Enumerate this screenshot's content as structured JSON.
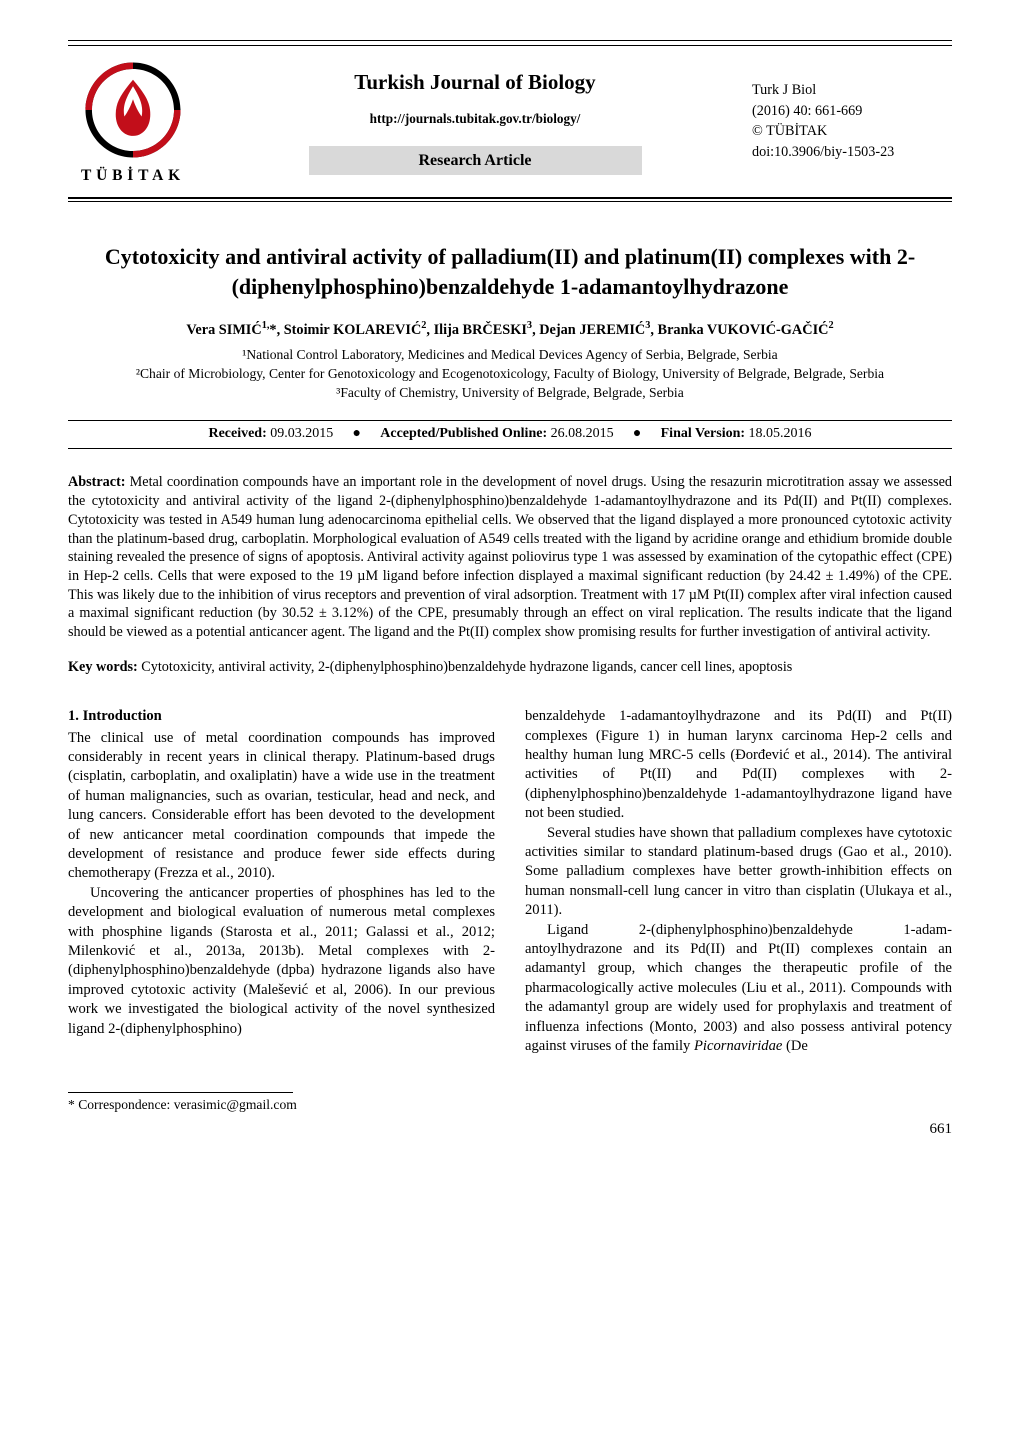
{
  "header": {
    "logo_text": "TÜBİTAK",
    "journal_title": "Turkish Journal of Biology",
    "journal_url": "http://journals.tubitak.gov.tr/biology/",
    "article_type": "Research Article",
    "short_title": "Turk J Biol",
    "issue": "(2016) 40: 661-669",
    "copyright": "© TÜBİTAK",
    "doi": "doi:10.3906/biy-1503-23",
    "logo_colors": {
      "red": "#c20e1a",
      "black": "#000000",
      "background": "#ffffff"
    },
    "pill_bg": "#d9d9d9"
  },
  "title": "Cytotoxicity and antiviral activity of palladium(II) and platinum(II) complexes with 2-(diphenylphosphino)benzaldehyde 1-adamantoylhydrazone",
  "authors_html": "Vera SIMIĆ<sup>1,</sup>*, Stoimir KOLAREVIĆ<sup>2</sup>, Ilija BRČESKI<sup>3</sup>, Dejan JEREMIĆ<sup>3</sup>, Branka VUKOVIĆ-GAČIĆ<sup>2</sup>",
  "affiliations": [
    "¹National Control Laboratory, Medicines and Medical Devices Agency of Serbia, Belgrade, Serbia",
    "²Chair of Microbiology, Center for Genotoxicology and Ecogenotoxicology, Faculty of Biology, University of Belgrade, Belgrade, Serbia",
    "³Faculty of Chemistry, University of Belgrade, Belgrade, Serbia"
  ],
  "dates": {
    "received_label": "Received:",
    "received": "09.03.2015",
    "accepted_label": "Accepted/Published Online:",
    "accepted": "26.08.2015",
    "final_label": "Final Version:",
    "final": "18.05.2016"
  },
  "abstract_label": "Abstract:",
  "abstract": "Metal coordination compounds have an important role in the development of novel drugs. Using the resazurin microtitration assay we assessed the cytotoxicity and antiviral activity of the ligand 2-(diphenylphosphino)benzaldehyde 1-adamantoylhydrazone and its Pd(II) and Pt(II) complexes. Cytotoxicity was tested in A549 human lung adenocarcinoma epithelial cells. We observed that the ligand displayed a more pronounced cytotoxic activity than the platinum-based drug, carboplatin. Morphological evaluation of A549 cells treated with the ligand by acridine orange and ethidium bromide double staining revealed the presence of signs of apoptosis. Antiviral activity against poliovirus type 1 was assessed by examination of the cytopathic effect (CPE) in Hep-2 cells. Cells that were exposed to the 19 µM ligand before infection displayed a maximal significant reduction (by 24.42 ± 1.49%) of the CPE. This was likely due to the inhibition of virus receptors and prevention of viral adsorption. Treatment with 17 µM Pt(II) complex after viral infection caused a maximal significant reduction (by 30.52 ± 3.12%) of the CPE, presumably through an effect on viral replication. The results indicate that the ligand should be viewed as a potential anticancer agent. The ligand and the Pt(II) complex show promising results for further investigation of antiviral activity.",
  "keywords_label": "Key words:",
  "keywords": "Cytotoxicity, antiviral activity, 2-(diphenylphosphino)benzaldehyde hydrazone ligands, cancer cell lines, apoptosis",
  "section_heading": "1. Introduction",
  "col_left": [
    "The clinical use of metal coordination compounds has improved considerably in recent years in clinical therapy. Platinum-based drugs (cisplatin, carboplatin, and oxaliplatin) have a wide use in the treatment of human malignancies, such as ovarian, testicular, head and neck, and lung cancers. Considerable effort has been devoted to the development of new anticancer metal coordination compounds that impede the development of resistance and produce fewer side effects during chemotherapy (Frezza et al., 2010).",
    "Uncovering the anticancer properties of phosphines has led to the development and biological evaluation of numerous metal complexes with phosphine ligands (Starosta et al., 2011; Galassi et al., 2012; Milenković et al., 2013a, 2013b). Metal complexes with 2-(diphenylphosphino)benzaldehyde (dpba) hydrazone ligands also have improved cytotoxic activity (Malešević et al, 2006). In our previous work we investigated the biological activity of the novel synthesized ligand 2-(diphenylphosphino)"
  ],
  "col_right": [
    "benzaldehyde 1-adamantoylhydrazone and its Pd(II) and Pt(II) complexes (Figure 1) in human larynx carcinoma Hep-2 cells and healthy human lung MRC-5 cells (Đorđević et al., 2014). The antiviral activities of Pt(II) and Pd(II) complexes with 2-(diphenylphosphino)benzaldehyde 1-adamantoylhydrazone ligand have not been studied.",
    "Several studies have shown that palladium complexes have cytotoxic activities similar to standard platinum-based drugs (Gao et al., 2010). Some palladium complexes have better growth-inhibition effects on human nonsmall-cell lung cancer in vitro than cisplatin (Ulukaya et al., 2011).",
    "Ligand 2-(diphenylphosphino)benzaldehyde 1-adam-antoylhydrazone and its Pd(II) and Pt(II) complexes contain an adamantyl group, which changes the therapeutic profile of the pharmacologically active molecules (Liu et al., 2011). Compounds with the adamantyl group are widely used for prophylaxis and treatment of influenza infections (Monto, 2003) and also possess antiviral potency against viruses of the family Picornaviridae (De"
  ],
  "italic_taxon": "Picornaviridae",
  "correspondence": "* Correspondence: verasimic@gmail.com",
  "page_number": "661"
}
